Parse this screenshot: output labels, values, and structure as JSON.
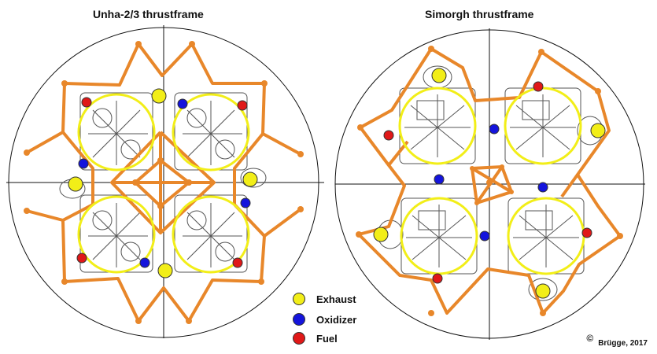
{
  "titles": {
    "left": "Unha-2/3 thrustframe",
    "right": "Simorgh thrustframe"
  },
  "legend": [
    {
      "label": "Exhaust",
      "color": "#f2ee18"
    },
    {
      "label": "Oxidizer",
      "color": "#1414dc"
    },
    {
      "label": "Fuel",
      "color": "#e01818"
    }
  ],
  "credit": {
    "symbol": "©",
    "text": "Brügge, 2017"
  },
  "colors": {
    "frame": "#e8872a",
    "node": "#e8872a",
    "engine_ring": "#f2ee18",
    "outline": "#111111",
    "engine_drawing": "#555555"
  }
}
